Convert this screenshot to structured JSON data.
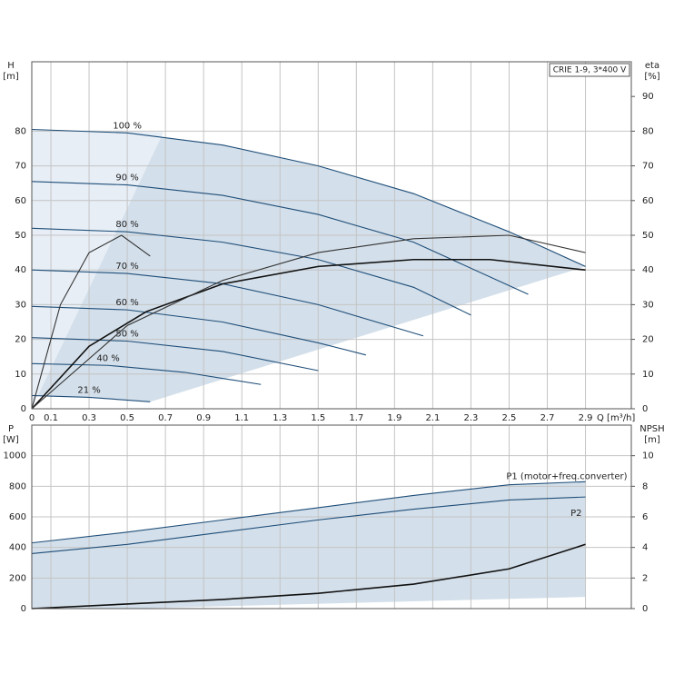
{
  "chart_data": [
    {
      "type": "line",
      "y_label": "H",
      "y_unit": "[m]",
      "y2_label": "eta",
      "y2_unit": "[%]",
      "x_label": "Q [m³/h]",
      "legend": "CRIE 1-9, 3*400 V",
      "xlim": [
        0,
        3.14
      ],
      "xticks": [
        0,
        0.1,
        0.3,
        0.5,
        0.7,
        0.9,
        1.1,
        1.3,
        1.5,
        1.7,
        1.9,
        2.1,
        2.3,
        2.5,
        2.7,
        2.9
      ],
      "ylim": [
        0,
        100
      ],
      "yticks": [
        0,
        10,
        20,
        30,
        40,
        50,
        60,
        70,
        80
      ],
      "y2lim": [
        0,
        100
      ],
      "y2ticks": [
        0,
        10,
        20,
        30,
        40,
        50,
        60,
        70,
        80,
        90
      ],
      "series": [
        {
          "name": "100 %",
          "color": "#1f4e79",
          "x": [
            0,
            0.5,
            1.0,
            1.5,
            2.0,
            2.5,
            2.9
          ],
          "values": [
            80.5,
            79.5,
            76,
            70,
            62,
            51,
            41
          ]
        },
        {
          "name": "90 %",
          "color": "#1f4e79",
          "x": [
            0,
            0.5,
            1.0,
            1.5,
            2.0,
            2.6
          ],
          "values": [
            65.5,
            64.5,
            61.5,
            56,
            48,
            33
          ]
        },
        {
          "name": "80 %",
          "color": "#1f4e79",
          "x": [
            0,
            0.5,
            1.0,
            1.5,
            2.0,
            2.3
          ],
          "values": [
            52,
            51,
            48,
            43,
            35,
            27
          ]
        },
        {
          "name": "70 %",
          "color": "#1f4e79",
          "x": [
            0,
            0.5,
            1.0,
            1.5,
            2.05
          ],
          "values": [
            40,
            39,
            36,
            30,
            21
          ]
        },
        {
          "name": "60 %",
          "color": "#1f4e79",
          "x": [
            0,
            0.5,
            1.0,
            1.5,
            1.75
          ],
          "values": [
            29.5,
            28.5,
            25,
            19,
            15.5
          ]
        },
        {
          "name": "50 %",
          "color": "#1f4e79",
          "x": [
            0,
            0.5,
            1.0,
            1.5
          ],
          "values": [
            20.5,
            19.5,
            16.5,
            11
          ]
        },
        {
          "name": "40 %",
          "color": "#1f4e79",
          "x": [
            0,
            0.4,
            0.8,
            1.2
          ],
          "values": [
            13,
            12.5,
            10.5,
            7
          ]
        },
        {
          "name": "21 %",
          "color": "#1f4e79",
          "x": [
            0,
            0.3,
            0.62
          ],
          "values": [
            3.8,
            3.3,
            2
          ]
        },
        {
          "axis": "y2",
          "color": "#111111",
          "x": [
            0,
            0.3,
            0.6,
            1.0,
            1.5,
            2.0,
            2.4,
            2.9
          ],
          "values": [
            0,
            18,
            28,
            36,
            41,
            43,
            43,
            40
          ]
        },
        {
          "axis": "y2",
          "color": "#333333",
          "x": [
            0,
            0.5,
            1.0,
            1.5,
            2.0,
            2.5,
            2.9
          ],
          "values": [
            0,
            24,
            37,
            45,
            49,
            50,
            45
          ]
        },
        {
          "axis": "y2",
          "color": "#333333",
          "x": [
            0,
            0.15,
            0.3,
            0.47,
            0.62
          ],
          "values": [
            0,
            30,
            45,
            50,
            44
          ]
        }
      ]
    },
    {
      "type": "line",
      "y_label": "P",
      "y_unit": "[W]",
      "y2_label": "NPSH",
      "y2_unit": "[m]",
      "xlim": [
        0,
        3.14
      ],
      "ylim": [
        0,
        1200
      ],
      "yticks": [
        0,
        200,
        400,
        600,
        800,
        1000
      ],
      "y2lim": [
        0,
        12
      ],
      "y2ticks": [
        0,
        2,
        4,
        6,
        8,
        10
      ],
      "series": [
        {
          "name": "P1 (motor+freq.converter)",
          "color": "#1f4e79",
          "x": [
            0,
            0.5,
            1.0,
            1.5,
            2.0,
            2.5,
            2.9
          ],
          "values": [
            430,
            500,
            580,
            660,
            740,
            810,
            830
          ]
        },
        {
          "name": "P2",
          "color": "#1f4e79",
          "x": [
            0,
            0.5,
            1.0,
            1.5,
            2.0,
            2.5,
            2.9
          ],
          "values": [
            360,
            420,
            500,
            580,
            650,
            710,
            730
          ]
        },
        {
          "axis": "y2",
          "color": "#111111",
          "x": [
            0,
            0.5,
            1.0,
            1.5,
            2.0,
            2.5,
            2.9
          ],
          "values": [
            0,
            0.3,
            0.6,
            1.0,
            1.6,
            2.6,
            4.2
          ]
        }
      ]
    }
  ]
}
